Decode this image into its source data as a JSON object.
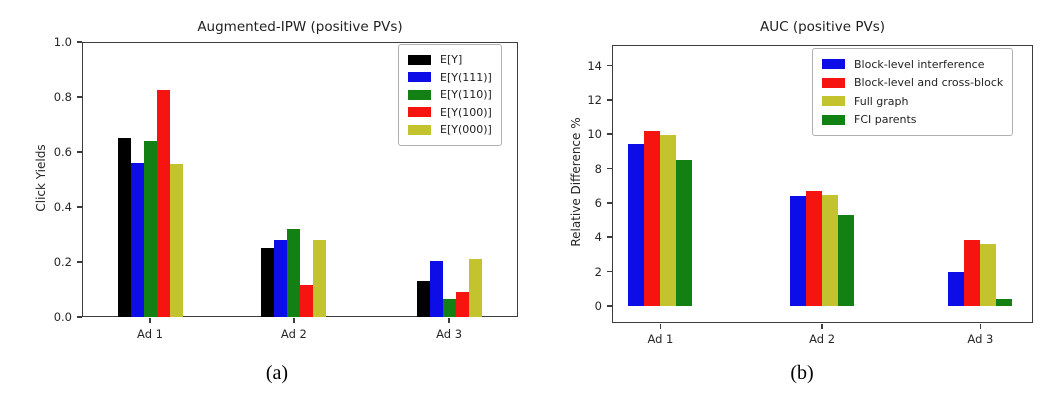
{
  "figure": {
    "background": "#ffffff",
    "description": "Two side-by-side grouped bar charts"
  },
  "panels": [
    {
      "caption": "(a)"
    },
    {
      "caption": "(b)"
    }
  ],
  "chart_data": [
    {
      "type": "bar",
      "title": "Augmented-IPW (positive PVs)",
      "xlabel": "",
      "ylabel": "Click Yields",
      "categories": [
        "Ad 1",
        "Ad 2",
        "Ad 3"
      ],
      "series": [
        {
          "name": "E[Y]",
          "color": "#000000",
          "values": [
            0.65,
            0.25,
            0.13
          ]
        },
        {
          "name": "E[Y(111)]",
          "color": "#0d0de8",
          "values": [
            0.56,
            0.28,
            0.205
          ]
        },
        {
          "name": "E[Y(110)]",
          "color": "#128012",
          "values": [
            0.64,
            0.32,
            0.065
          ]
        },
        {
          "name": "E[Y(100)]",
          "color": "#f51410",
          "values": [
            0.825,
            0.115,
            0.09
          ]
        },
        {
          "name": "E[Y(000)]",
          "color": "#c3c32d",
          "values": [
            0.555,
            0.28,
            0.21
          ]
        }
      ],
      "ylim": [
        0,
        1.0
      ],
      "yticks": [
        {
          "value": 0.0,
          "label": "0.0"
        },
        {
          "value": 0.2,
          "label": "0.2"
        },
        {
          "value": 0.4,
          "label": "0.4"
        },
        {
          "value": 0.6,
          "label": "0.6"
        },
        {
          "value": 0.8,
          "label": "0.8"
        },
        {
          "value": 1.0,
          "label": "1.0"
        }
      ],
      "legend_position": "upper right",
      "grid": false
    },
    {
      "type": "bar",
      "title": "AUC (positive PVs)",
      "xlabel": "",
      "ylabel": "Relative Difference %",
      "categories": [
        "Ad 1",
        "Ad 2",
        "Ad 3"
      ],
      "series": [
        {
          "name": "Block-level interference",
          "color": "#0d0de8",
          "values": [
            9.45,
            6.4,
            2.0
          ]
        },
        {
          "name": "Block-level and cross-block",
          "color": "#f51410",
          "values": [
            10.2,
            6.7,
            3.85
          ]
        },
        {
          "name": "Full graph",
          "color": "#c3c32d",
          "values": [
            9.95,
            6.45,
            3.6
          ]
        },
        {
          "name": "FCI parents",
          "color": "#128012",
          "values": [
            8.5,
            5.3,
            0.4
          ]
        }
      ],
      "ylim": [
        -1,
        15.2
      ],
      "yticks": [
        {
          "value": 0,
          "label": "0"
        },
        {
          "value": 2,
          "label": "2"
        },
        {
          "value": 4,
          "label": "4"
        },
        {
          "value": 6,
          "label": "6"
        },
        {
          "value": 8,
          "label": "8"
        },
        {
          "value": 10,
          "label": "10"
        },
        {
          "value": 12,
          "label": "12"
        },
        {
          "value": 14,
          "label": "14"
        }
      ],
      "legend_position": "upper right",
      "grid": false
    }
  ]
}
